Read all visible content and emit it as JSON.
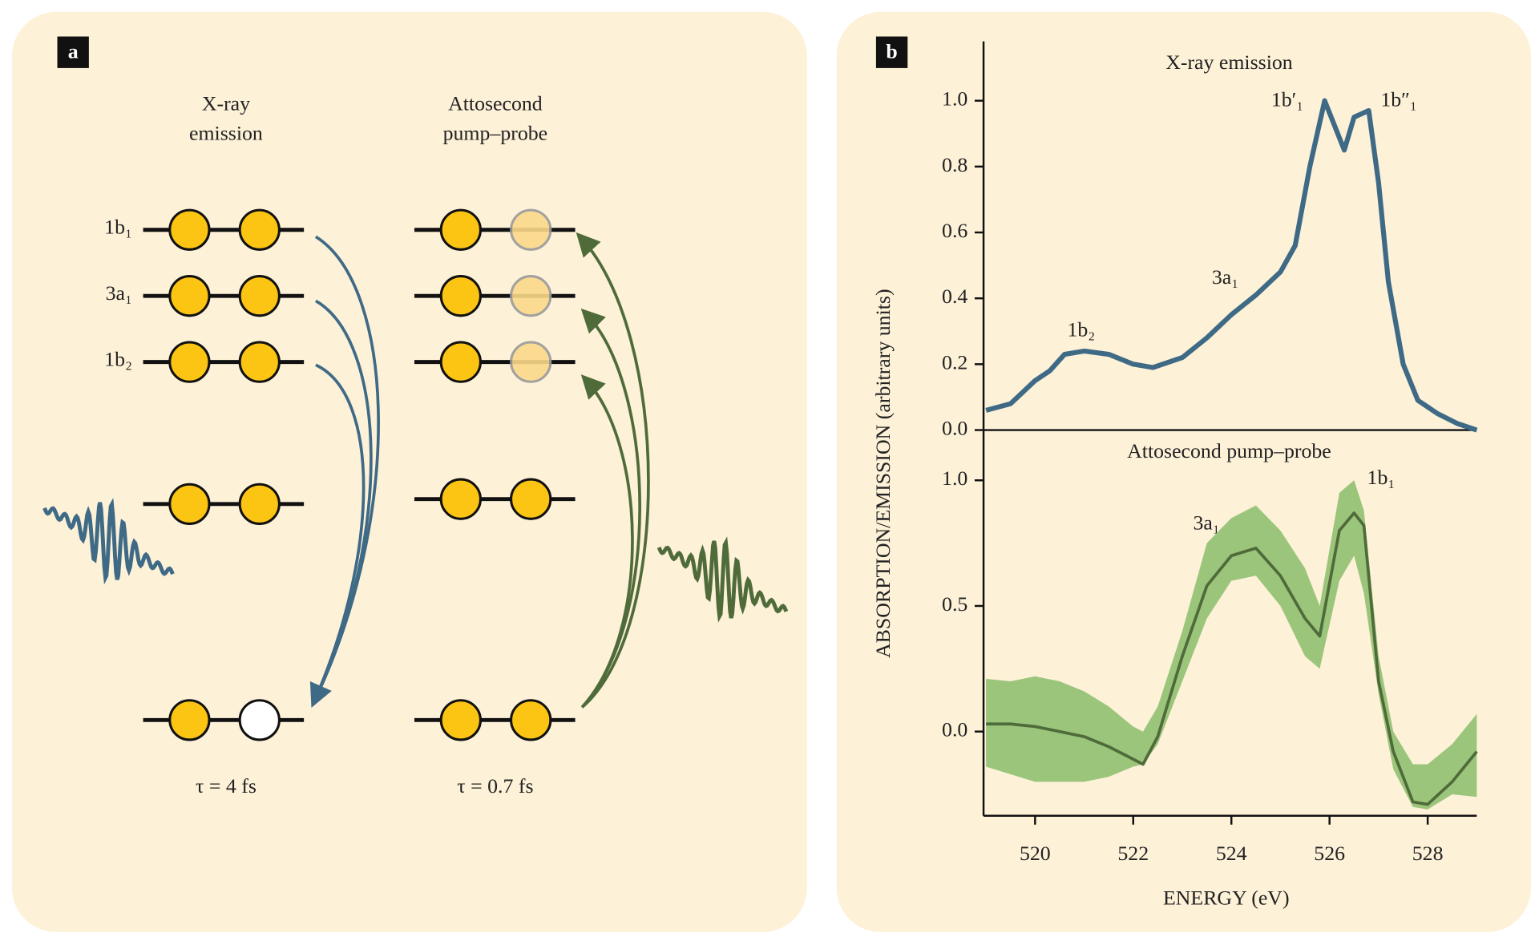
{
  "diagram": {
    "label": "a",
    "columns": [
      {
        "title": [
          "X-ray",
          "emission"
        ],
        "tau": "τ = 4 fs"
      },
      {
        "title": [
          "Attosecond",
          "pump–probe"
        ],
        "tau": "τ = 0.7 fs"
      }
    ],
    "levels": [
      "1b₁",
      "3a₁",
      "1b₂"
    ]
  },
  "chart_data": [
    {
      "type": "line",
      "panel": "b",
      "title": "X-ray emission",
      "x": [
        519,
        519.5,
        520,
        520.3,
        520.6,
        521,
        521.5,
        522,
        522.4,
        523,
        523.5,
        524,
        524.5,
        525,
        525.3,
        525.6,
        525.9,
        526.3,
        526.5,
        526.8,
        527,
        527.2,
        527.5,
        527.8,
        528.2,
        528.6,
        529
      ],
      "values": [
        0.06,
        0.08,
        0.15,
        0.18,
        0.23,
        0.24,
        0.23,
        0.2,
        0.19,
        0.22,
        0.28,
        0.35,
        0.41,
        0.48,
        0.56,
        0.8,
        1.0,
        0.85,
        0.95,
        0.97,
        0.75,
        0.45,
        0.2,
        0.09,
        0.05,
        0.02,
        0.0
      ],
      "color": "#3f6a86",
      "annotations": [
        "1b₂",
        "3a₁",
        "1b′₁",
        "1b″₁"
      ],
      "xlim": [
        518.95,
        529
      ],
      "ylim": [
        0,
        1.18
      ],
      "yticks": [
        {
          "value": 0,
          "label": "0.0"
        },
        {
          "value": 0.2,
          "label": "0.2"
        },
        {
          "value": 0.4,
          "label": "0.4"
        },
        {
          "value": 0.6,
          "label": "0.6"
        },
        {
          "value": 0.8,
          "label": "0.8"
        },
        {
          "value": 1,
          "label": "1.0"
        }
      ]
    },
    {
      "type": "band",
      "title": "Attosecond pump–probe",
      "x": [
        519,
        519.5,
        520,
        520.5,
        521,
        521.5,
        522,
        522.2,
        522.5,
        523,
        523.5,
        524,
        524.5,
        525,
        525.5,
        525.8,
        526.2,
        526.5,
        526.7,
        527,
        527.3,
        527.7,
        528,
        528.5,
        529
      ],
      "values": [
        0.03,
        0.03,
        0.02,
        0.0,
        -0.02,
        -0.06,
        -0.11,
        -0.13,
        -0.02,
        0.3,
        0.58,
        0.7,
        0.73,
        0.62,
        0.45,
        0.38,
        0.8,
        0.87,
        0.82,
        0.2,
        -0.08,
        -0.28,
        -0.29,
        -0.2,
        -0.08
      ],
      "lower": [
        -0.14,
        -0.17,
        -0.2,
        -0.2,
        -0.2,
        -0.18,
        -0.14,
        -0.13,
        -0.05,
        0.2,
        0.45,
        0.6,
        0.62,
        0.5,
        0.3,
        0.25,
        0.6,
        0.7,
        0.55,
        0.15,
        -0.15,
        -0.3,
        -0.31,
        -0.25,
        -0.26
      ],
      "upper": [
        0.21,
        0.2,
        0.22,
        0.2,
        0.16,
        0.1,
        0.02,
        0.0,
        0.1,
        0.4,
        0.75,
        0.85,
        0.9,
        0.8,
        0.65,
        0.5,
        0.95,
        1.0,
        0.88,
        0.3,
        0.0,
        -0.13,
        -0.13,
        -0.05,
        0.07
      ],
      "color": "#4f6b3a",
      "band_color": "#9cc57c",
      "annotations": [
        "3a₁",
        "1b₁"
      ],
      "xlim": [
        518.95,
        529
      ],
      "ylim": [
        -0.335,
        1.2
      ],
      "xticks": [
        520,
        522,
        524,
        526,
        528
      ],
      "yticks": [
        {
          "value": 0,
          "label": "0.0"
        },
        {
          "value": 0.5,
          "label": "0.5"
        },
        {
          "value": 1,
          "label": "1.0"
        }
      ],
      "xlabel": "ENERGY (eV)",
      "ylabel": "ABSORPTION/EMISSION (arbitrary units)"
    }
  ]
}
